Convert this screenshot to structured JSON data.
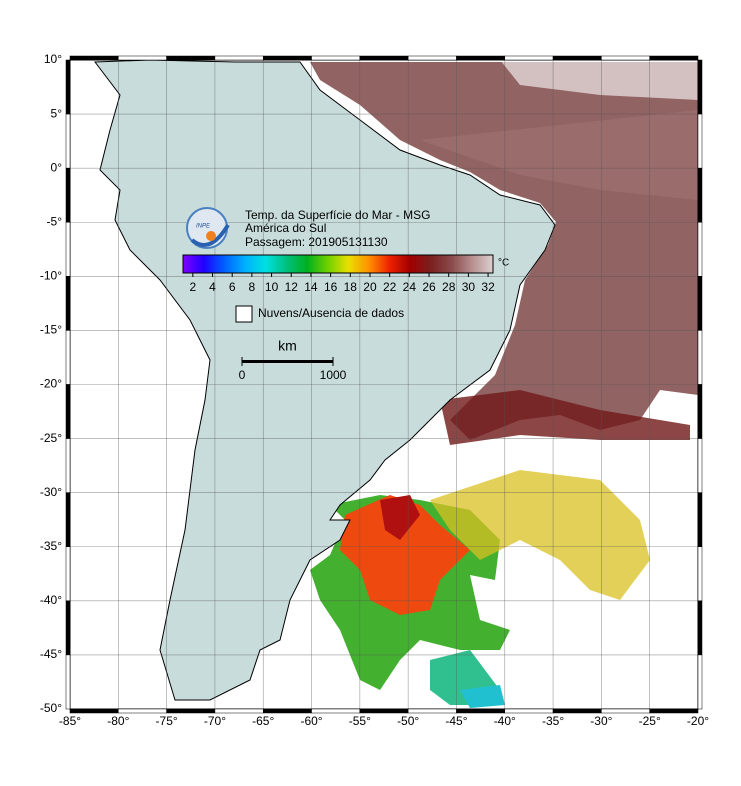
{
  "map": {
    "title_lines": [
      "Temp. da Superfície do Mar - MSG",
      "América do Sul",
      "Passagem: 201905131130"
    ],
    "logo_text": "INPE",
    "xlim": [
      -85,
      -20
    ],
    "ylim": [
      -50,
      10
    ],
    "xticks": [
      {
        "value": -85,
        "label": "-85°"
      },
      {
        "value": -80,
        "label": "-80°"
      },
      {
        "value": -75,
        "label": "-75°"
      },
      {
        "value": -70,
        "label": "-70°"
      },
      {
        "value": -65,
        "label": "-65°"
      },
      {
        "value": -60,
        "label": "-60°"
      },
      {
        "value": -55,
        "label": "-55°"
      },
      {
        "value": -50,
        "label": "-50°"
      },
      {
        "value": -45,
        "label": "-45°"
      },
      {
        "value": -40,
        "label": "-40°"
      },
      {
        "value": -35,
        "label": "-35°"
      },
      {
        "value": -30,
        "label": "-30°"
      },
      {
        "value": -25,
        "label": "-25°"
      },
      {
        "value": -20,
        "label": "-20°"
      }
    ],
    "yticks": [
      {
        "value": 10,
        "label": "10°"
      },
      {
        "value": 5,
        "label": "5°"
      },
      {
        "value": 0,
        "label": "0°"
      },
      {
        "value": -5,
        "label": "-5°"
      },
      {
        "value": -10,
        "label": "-10°"
      },
      {
        "value": -15,
        "label": "-15°"
      },
      {
        "value": -20,
        "label": "-20°"
      },
      {
        "value": -25,
        "label": "-25°"
      },
      {
        "value": -30,
        "label": "-30°"
      },
      {
        "value": -35,
        "label": "-35°"
      },
      {
        "value": -40,
        "label": "-40°"
      },
      {
        "value": -45,
        "label": "-45°"
      },
      {
        "value": -50,
        "label": "-50°"
      }
    ],
    "colorbar": {
      "lim": [
        1,
        32.5
      ],
      "ticks": [
        2,
        4,
        6,
        8,
        10,
        12,
        14,
        16,
        18,
        20,
        22,
        24,
        26,
        28,
        30,
        32
      ],
      "unit": "°C",
      "colors": [
        "#8000ff",
        "#2000ff",
        "#0060ff",
        "#00b0ff",
        "#00e0e0",
        "#00c080",
        "#00b020",
        "#70d000",
        "#e8e000",
        "#ff9000",
        "#ee2000",
        "#a00000",
        "#7a2020",
        "#8a4a4a",
        "#b89090",
        "#dcd0d0"
      ]
    },
    "legend": "Nuvens/Ausencia de dados",
    "scale": {
      "unit": "km",
      "ticks": [
        0,
        1000
      ]
    }
  }
}
